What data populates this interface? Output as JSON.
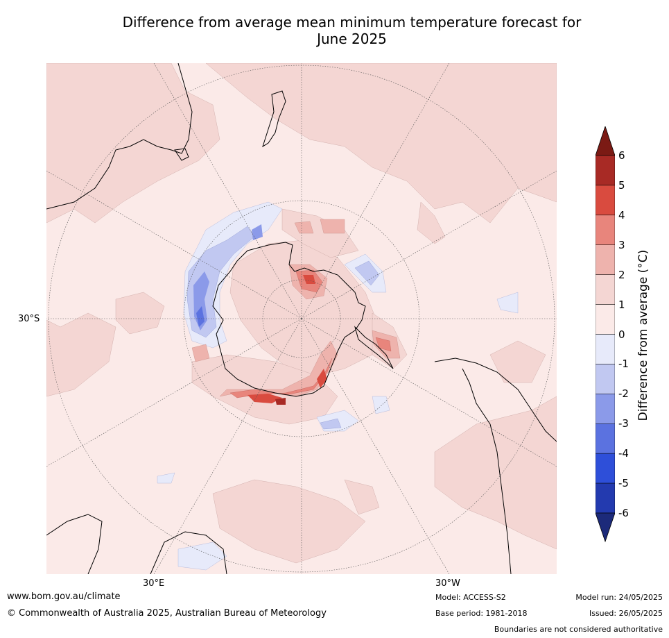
{
  "title": {
    "line1": "Difference from average mean minimum temperature forecast for",
    "line2": "June 2025"
  },
  "map": {
    "projection": "south-polar-stereographic",
    "lat_label": "30°S",
    "lon_labels": {
      "east": "30°E",
      "west": "30°W"
    },
    "background_color": "#fbeae8",
    "features": [
      "antarctica-coastline",
      "australia-coastline",
      "new-zealand-coastline",
      "south-america-coastline",
      "africa-coastline",
      "graticule"
    ]
  },
  "colorbar": {
    "label": "Difference from average ($^\\circ$C)",
    "label_text": "Difference from average (°C)",
    "ticks": [
      "6",
      "5",
      "4",
      "3",
      "2",
      "1",
      "0",
      "-1",
      "-2",
      "-3",
      "-4",
      "-5",
      "-6"
    ],
    "levels": [
      {
        "range": [
          6,
          99
        ],
        "color": "#7b1a14"
      },
      {
        "range": [
          5,
          6
        ],
        "color": "#a82a25"
      },
      {
        "range": [
          4,
          5
        ],
        "color": "#d94b3f"
      },
      {
        "range": [
          3,
          4
        ],
        "color": "#e8857c"
      },
      {
        "range": [
          2,
          3
        ],
        "color": "#eeb3ad"
      },
      {
        "range": [
          1,
          2
        ],
        "color": "#f4d6d3"
      },
      {
        "range": [
          0,
          1
        ],
        "color": "#fbeae8"
      },
      {
        "range": [
          -1,
          0
        ],
        "color": "#e7eafa"
      },
      {
        "range": [
          -2,
          -1
        ],
        "color": "#c1c8f1"
      },
      {
        "range": [
          -3,
          -2
        ],
        "color": "#8b9ae9"
      },
      {
        "range": [
          -4,
          -3
        ],
        "color": "#5b72e0"
      },
      {
        "range": [
          -5,
          -4
        ],
        "color": "#2e4fd9"
      },
      {
        "range": [
          -6,
          -5
        ],
        "color": "#233aaf"
      },
      {
        "range": [
          -99,
          -6
        ],
        "color": "#1c2a7a"
      }
    ]
  },
  "footer": {
    "website": "www.bom.gov.au/climate",
    "copyright": "© Commonwealth of Australia 2025, Australian Bureau of Meteorology",
    "model": "Model: ACCESS-S2",
    "base_period": "Base period: 1981-2018",
    "model_run": "Model run: 24/05/2025",
    "issued": "Issued: 26/05/2025",
    "disclaimer": "Boundaries are not considered authoritative"
  }
}
